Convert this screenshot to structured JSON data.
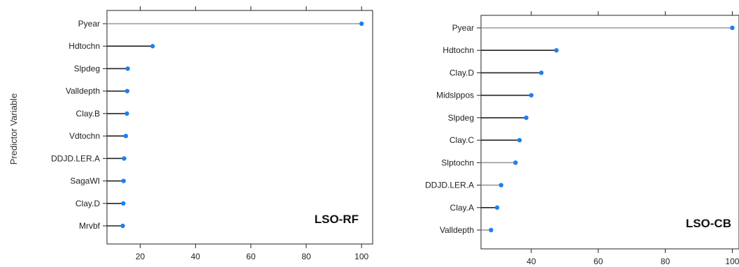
{
  "y_axis_title": "Predictor Variable",
  "chart_data": [
    {
      "type": "dot",
      "panel_label": "LSO-RF",
      "categories": [
        "Pyear",
        "Hdtochn",
        "Slpdeg",
        "Valldepth",
        "Clay.B",
        "Vdtochn",
        "DDJD.LER.A",
        "SagaWI",
        "Clay.D",
        "Mrvbf"
      ],
      "values": [
        100,
        24.5,
        15.5,
        15.3,
        15.2,
        14.8,
        14.2,
        14.0,
        13.9,
        13.7
      ],
      "xlim": [
        8,
        104
      ],
      "xticks": [
        20,
        40,
        60,
        80,
        100
      ],
      "line_colors": [
        "#999999",
        "#222222",
        "#222222",
        "#222222",
        "#222222",
        "#222222",
        "#222222",
        "#222222",
        "#222222",
        "#222222"
      ],
      "point_color": "#1e7ff0"
    },
    {
      "type": "dot",
      "panel_label": "LSO-CB",
      "categories": [
        "Pyear",
        "Hdtochn",
        "Clay.D",
        "Midslppos",
        "Slpdeg",
        "Clay.C",
        "Slptochn",
        "DDJD.LER.A",
        "Clay.A",
        "Valldepth"
      ],
      "values": [
        100,
        47.5,
        43.0,
        40.0,
        38.5,
        36.5,
        35.3,
        31.0,
        29.8,
        28.0
      ],
      "xlim": [
        25,
        102
      ],
      "xticks": [
        40,
        60,
        80,
        100
      ],
      "line_colors": [
        "#999999",
        "#222222",
        "#222222",
        "#222222",
        "#222222",
        "#222222",
        "#999999",
        "#999999",
        "#222222",
        "#999999"
      ],
      "point_color": "#1e7ff0"
    }
  ]
}
